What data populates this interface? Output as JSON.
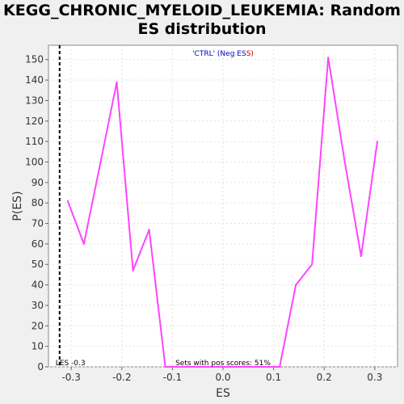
{
  "chart_data": {
    "type": "line",
    "title_line1": "KEGG_CHRONIC_MYELOID_LEUKEMIA: Random",
    "title_line2": "ES distribution",
    "xlabel": "ES",
    "ylabel": "P(ES)",
    "xlim": [
      -0.345,
      0.345
    ],
    "ylim": [
      0,
      157
    ],
    "x_ticks": [
      -0.3,
      -0.2,
      -0.1,
      0.0,
      0.1,
      0.2,
      0.3
    ],
    "x_tick_labels": [
      "-0.3",
      "-0.2",
      "-0.1",
      "0.0",
      "0.1",
      "0.2",
      "0.3"
    ],
    "y_ticks": [
      0,
      10,
      20,
      30,
      40,
      50,
      60,
      70,
      80,
      90,
      100,
      110,
      120,
      130,
      140,
      150
    ],
    "grid": true,
    "legend": {
      "prefix": "'CTRL' (Neg ES",
      "suffix": "S)",
      "prefix_color": "#0000cc",
      "suffix_color": "#cc0000"
    },
    "series": [
      {
        "color": "#ff44ff",
        "x": [
          -0.307,
          -0.275,
          -0.242,
          -0.21,
          -0.178,
          -0.146,
          -0.114,
          -0.081,
          -0.049,
          -0.017,
          0.015,
          0.047,
          0.079,
          0.112,
          0.144,
          0.176,
          0.208,
          0.24,
          0.273,
          0.305
        ],
        "y": [
          81,
          60,
          100,
          139,
          47,
          67,
          0,
          0,
          0,
          0,
          0,
          0,
          0,
          0,
          40,
          50,
          151,
          101,
          54,
          110
        ]
      }
    ],
    "observed_es": {
      "x": -0.323,
      "label": "LES -0.3"
    },
    "footer_text": "Sets with pos scores: 51%"
  }
}
